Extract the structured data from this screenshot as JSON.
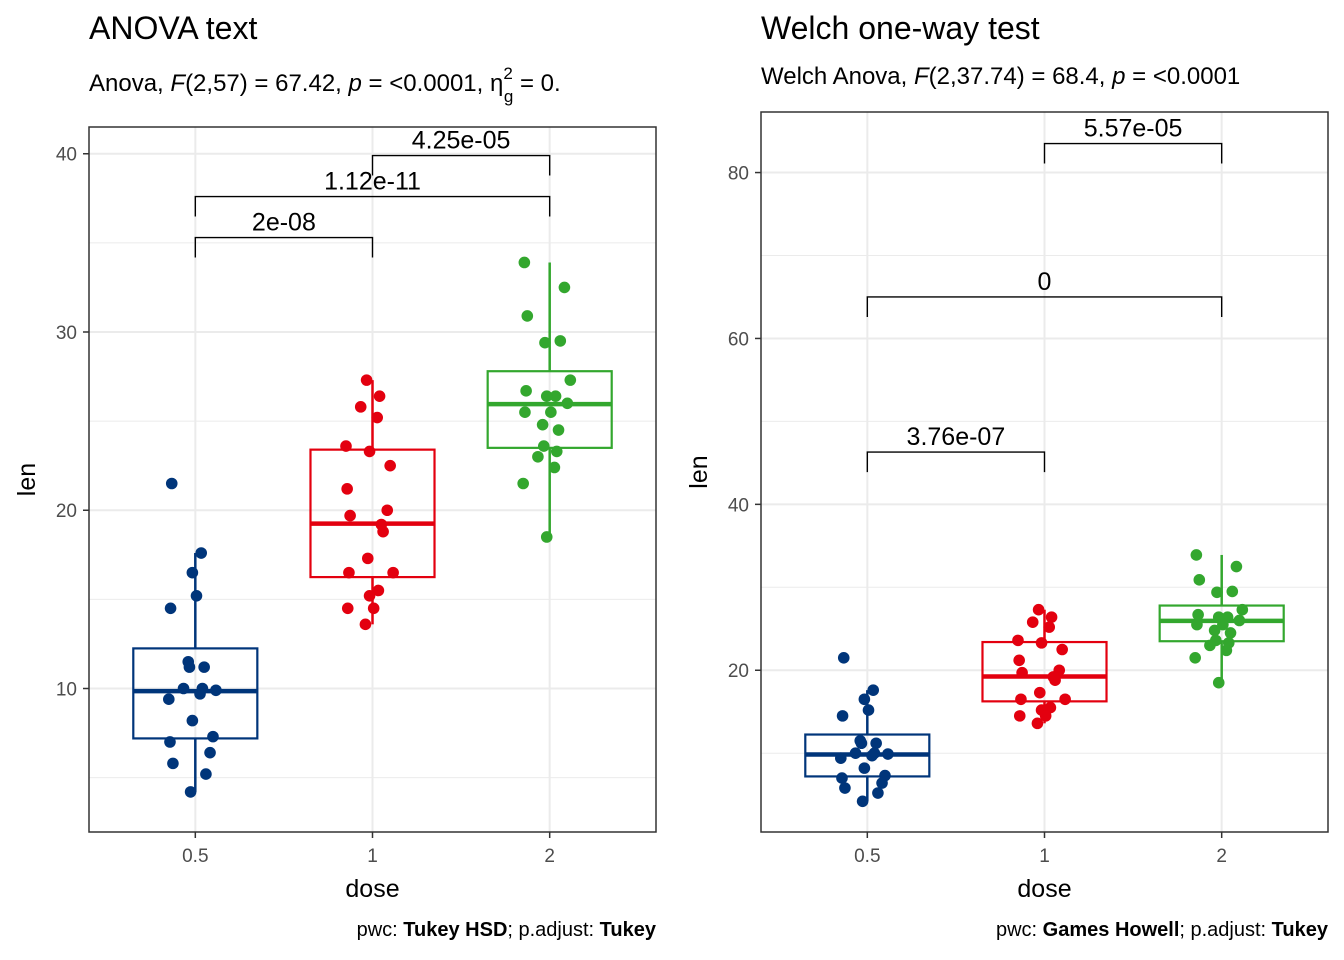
{
  "colors": {
    "0.5": "#00357a",
    "1": "#e3000f",
    "2": "#33a72e",
    "grid": "#ebebeb",
    "frame": "#333333"
  },
  "chart_data": [
    {
      "type": "boxplot",
      "title": "ANOVA text",
      "subtitle": {
        "prefix": "Anova, ",
        "stat_name": "F",
        "stat_args": "(2,57) = 67.42, ",
        "p_name": "p",
        "p_text": " = <0.0001, ",
        "eta": "η",
        "eta_sup": "2",
        "eta_sub": "g",
        "eta_text": " = 0."
      },
      "xlabel": "dose",
      "ylabel": "len",
      "categories": [
        "0.5",
        "1",
        "2"
      ],
      "ylim": [
        1.95,
        41.5
      ],
      "yticks": [
        10,
        20,
        30,
        40
      ],
      "boxes": [
        {
          "name": "0.5",
          "min": 4.2,
          "q1": 7.2,
          "median": 9.85,
          "q3": 12.25,
          "max": 17.6
        },
        {
          "name": "1",
          "min": 13.6,
          "q1": 16.25,
          "median": 19.25,
          "q3": 23.4,
          "max": 27.3
        },
        {
          "name": "2",
          "min": 18.5,
          "q1": 23.5,
          "median": 25.95,
          "q3": 27.8,
          "max": 33.9
        }
      ],
      "points": [
        {
          "group": "0.5",
          "values": [
            21.5,
            17.6,
            16.5,
            15.2,
            14.5,
            11.5,
            11.2,
            11.2,
            10.0,
            10.0,
            9.7,
            9.4,
            8.2,
            7.3,
            7.0,
            6.4,
            5.8,
            5.2,
            4.2,
            9.9
          ]
        },
        {
          "group": "1",
          "values": [
            27.3,
            26.4,
            25.8,
            25.2,
            23.6,
            23.3,
            22.5,
            21.2,
            20.0,
            19.7,
            18.8,
            17.3,
            16.5,
            16.5,
            15.5,
            15.2,
            14.5,
            14.5,
            13.6,
            19.2
          ]
        },
        {
          "group": "2",
          "values": [
            33.9,
            32.5,
            30.9,
            29.5,
            29.4,
            27.3,
            26.7,
            26.4,
            26.4,
            25.5,
            25.5,
            24.8,
            24.5,
            23.6,
            23.3,
            23.0,
            22.4,
            21.5,
            18.5,
            26.0
          ]
        }
      ],
      "comparisons": [
        {
          "group1": "0.5",
          "group2": "1",
          "label": "2e-08",
          "y": 35.3
        },
        {
          "group1": "0.5",
          "group2": "2",
          "label": "1.12e-11",
          "y": 37.6
        },
        {
          "group1": "1",
          "group2": "2",
          "label": "4.25e-05",
          "y": 39.9
        }
      ],
      "caption": {
        "pre": "pwc: ",
        "method": "Tukey HSD",
        "mid": "; p.adjust: ",
        "adjust": "Tukey"
      }
    },
    {
      "type": "boxplot",
      "title": "Welch one-way test",
      "subtitle": {
        "prefix": "Welch Anova, ",
        "stat_name": "F",
        "stat_args": "(2,37.74) = 68.4, ",
        "p_name": "p",
        "p_text": " = <0.0001"
      },
      "xlabel": "dose",
      "ylabel": "len",
      "categories": [
        "0.5",
        "1",
        "2"
      ],
      "ylim": [
        0.5,
        87.3
      ],
      "yticks": [
        20,
        40,
        60,
        80
      ],
      "boxes": [
        {
          "name": "0.5",
          "min": 4.2,
          "q1": 7.2,
          "median": 9.85,
          "q3": 12.25,
          "max": 17.6
        },
        {
          "name": "1",
          "min": 13.6,
          "q1": 16.25,
          "median": 19.25,
          "q3": 23.4,
          "max": 27.3
        },
        {
          "name": "2",
          "min": 18.5,
          "q1": 23.5,
          "median": 25.95,
          "q3": 27.8,
          "max": 33.9
        }
      ],
      "points": [
        {
          "group": "0.5",
          "values": [
            21.5,
            17.6,
            16.5,
            15.2,
            14.5,
            11.5,
            11.2,
            11.2,
            10.0,
            10.0,
            9.7,
            9.4,
            8.2,
            7.3,
            7.0,
            6.4,
            5.8,
            5.2,
            4.2,
            9.9
          ]
        },
        {
          "group": "1",
          "values": [
            27.3,
            26.4,
            25.8,
            25.2,
            23.6,
            23.3,
            22.5,
            21.2,
            20.0,
            19.7,
            18.8,
            17.3,
            16.5,
            16.5,
            15.5,
            15.2,
            14.5,
            14.5,
            13.6,
            19.2
          ]
        },
        {
          "group": "2",
          "values": [
            33.9,
            32.5,
            30.9,
            29.5,
            29.4,
            27.3,
            26.7,
            26.4,
            26.4,
            25.5,
            25.5,
            24.8,
            24.5,
            23.6,
            23.3,
            23.0,
            22.4,
            21.5,
            18.5,
            26.0
          ]
        }
      ],
      "comparisons": [
        {
          "group1": "0.5",
          "group2": "1",
          "label": "3.76e-07",
          "y": 46.3
        },
        {
          "group1": "0.5",
          "group2": "2",
          "label": "0",
          "y": 65.0
        },
        {
          "group1": "1",
          "group2": "2",
          "label": "5.57e-05",
          "y": 83.5
        }
      ],
      "caption": {
        "pre": "pwc: ",
        "method": "Games Howell",
        "mid": "; p.adjust: ",
        "adjust": "Tukey"
      }
    }
  ]
}
